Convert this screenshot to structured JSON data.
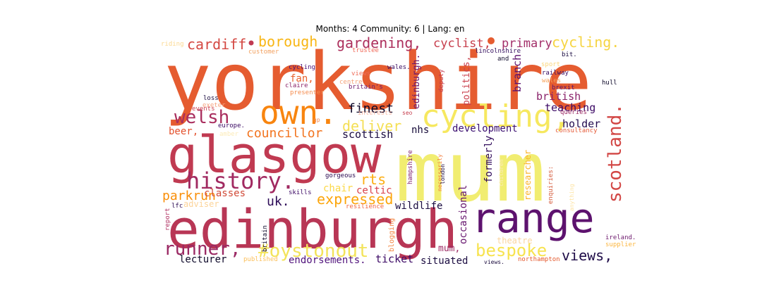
{
  "chart_data": {
    "type": "wordcloud",
    "title": "Months: 4 Community: 6 | Lang: en",
    "colormap": "inferno",
    "background": "#ffffff",
    "words": [
      {
        "text": "yorkshire",
        "color": "#e55c30",
        "weight": 1.0
      },
      {
        "text": "mum",
        "color": "#f1ed71",
        "weight": 0.97
      },
      {
        "text": "glasgow",
        "color": "#c03a51",
        "weight": 0.78
      },
      {
        "text": "edinburgh",
        "color": "#b83655",
        "weight": 0.76
      },
      {
        "text": "range",
        "color": "#5d126e",
        "weight": 0.62
      },
      {
        "text": "own.",
        "color": "#f8850f",
        "weight": 0.48
      },
      {
        "text": "cycling,",
        "color": "#f6e85f",
        "weight": 0.46
      },
      {
        "text": "history.",
        "color": "#a12a61",
        "weight": 0.33
      },
      {
        "text": "welsh",
        "color": "#a92e5e",
        "weight": 0.28
      },
      {
        "text": "runner,",
        "color": "#9b2964",
        "weight": 0.27
      },
      {
        "text": "#oystonout",
        "color": "#f3e35a",
        "weight": 0.27
      },
      {
        "text": "scotland.",
        "color": "#d24644",
        "weight": 0.26
      },
      {
        "text": "bespoke",
        "color": "#f7e34f",
        "weight": 0.25
      },
      {
        "text": "cardiff",
        "color": "#d44842",
        "weight": 0.22
      },
      {
        "text": "borough",
        "color": "#f8b615",
        "weight": 0.22
      },
      {
        "text": "gardening,",
        "color": "#ad305d",
        "weight": 0.22
      },
      {
        "text": "cycling.",
        "color": "#f6d543",
        "weight": 0.22
      },
      {
        "text": "parkrun",
        "color": "#f98e08",
        "weight": 0.2
      },
      {
        "text": "expressed",
        "color": "#fca50a",
        "weight": 0.2
      },
      {
        "text": "views,",
        "color": "#1f0c48",
        "weight": 0.2
      },
      {
        "text": "rts",
        "color": "#fcae12",
        "weight": 0.2
      },
      {
        "text": "deliver",
        "color": "#f4df53",
        "weight": 0.2
      },
      {
        "text": "finest",
        "color": "#0d0829",
        "weight": 0.19
      },
      {
        "text": "councillor",
        "color": "#f2741f",
        "weight": 0.19
      },
      {
        "text": "uk.",
        "color": "#2c0b57",
        "weight": 0.18
      },
      {
        "text": "cyclist,",
        "color": "#c73e4c",
        "weight": 0.17
      },
      {
        "text": "primary",
        "color": "#a3306a",
        "weight": 0.17
      },
      {
        "text": "teaching",
        "color": "#3c0965",
        "weight": 0.16
      },
      {
        "text": "holder",
        "color": "#240c4f",
        "weight": 0.15
      },
      {
        "text": "british",
        "color": "#8a226a",
        "weight": 0.15
      },
      {
        "text": "branch",
        "color": "#5d126e",
        "weight": 0.15
      },
      {
        "text": "scottish",
        "color": "#1b0c41",
        "weight": 0.15
      },
      {
        "text": "development",
        "color": "#3b0f70",
        "weight": 0.15
      },
      {
        "text": "nhs",
        "color": "#160b39",
        "weight": 0.13
      },
      {
        "text": "wildlife",
        "color": "#1b0c41",
        "weight": 0.15
      },
      {
        "text": "celtic",
        "color": "#d8414a",
        "weight": 0.15
      },
      {
        "text": "chair",
        "color": "#fbd846",
        "weight": 0.13
      },
      {
        "text": "classes",
        "color": "#d14a37",
        "weight": 0.14
      },
      {
        "text": "beer,",
        "color": "#e3512d",
        "weight": 0.14
      },
      {
        "text": "fan,",
        "color": "#e7622d",
        "weight": 0.14
      },
      {
        "text": "lecturer",
        "color": "#0d0829",
        "weight": 0.15
      },
      {
        "text": "endorsements.",
        "color": "#4f117b",
        "weight": 0.13
      },
      {
        "text": "ticket",
        "color": "#3c0965",
        "weight": 0.15
      },
      {
        "text": "situated",
        "color": "#1b0c41",
        "weight": 0.14
      },
      {
        "text": "mum,",
        "color": "#9c2a63",
        "weight": 0.13
      },
      {
        "text": "occasional",
        "color": "#66156e",
        "weight": 0.15
      },
      {
        "text": "formerly",
        "color": "#300a5b",
        "weight": 0.14
      },
      {
        "text": "politics,",
        "color": "#c93f4c",
        "weight": 0.13
      },
      {
        "text": "researcher",
        "color": "#fbb32a",
        "weight": 0.11
      },
      {
        "text": "edinburgh.",
        "color": "#6a176e",
        "weight": 0.13
      },
      {
        "text": "theatre",
        "color": "#fbd5a0",
        "weight": 0.11
      },
      {
        "text": "adviser",
        "color": "#fcd49a",
        "weight": 0.11
      },
      {
        "text": "britain",
        "color": "#0d0829",
        "weight": 0.08
      },
      {
        "text": "blogging",
        "color": "#f38845",
        "weight": 0.09
      },
      {
        "text": "northampton",
        "color": "#e4582c",
        "weight": 0.08
      },
      {
        "text": "views.",
        "color": "#1a0b3e",
        "weight": 0.07
      },
      {
        "text": "ireland.",
        "color": "#6e1a6e",
        "weight": 0.08
      },
      {
        "text": "supplier",
        "color": "#fbb53d",
        "weight": 0.08
      },
      {
        "text": "enquiries:",
        "color": "#d55c3c",
        "weight": 0.08
      },
      {
        "text": "anything",
        "color": "#fde4a5",
        "weight": 0.07
      },
      {
        "text": "children",
        "color": "#fcecb9",
        "weight": 0.07
      },
      {
        "text": "hampshire",
        "color": "#7d1e6c",
        "weight": 0.08
      },
      {
        "text": "necessarily",
        "color": "#f37c3c",
        "weight": 0.07
      },
      {
        "text": "london",
        "color": "#1b0c41",
        "weight": 0.07
      },
      {
        "text": "resilience",
        "color": "#f06742",
        "weight": 0.08
      },
      {
        "text": "skills",
        "color": "#3c0965",
        "weight": 0.08
      },
      {
        "text": "gorgeous",
        "color": "#2a0a51",
        "weight": 0.08
      },
      {
        "text": "lfc",
        "color": "#2a0a51",
        "weight": 0.08
      },
      {
        "text": "report",
        "color": "#b03062",
        "weight": 0.08
      },
      {
        "text": "published",
        "color": "#fbbf5a",
        "weight": 0.08
      },
      {
        "text": "riding",
        "color": "#fbd890",
        "weight": 0.08
      },
      {
        "text": "customer",
        "color": "#f2a160",
        "weight": 0.08
      },
      {
        "text": "trustee",
        "color": "#f06a5a",
        "weight": 0.08
      },
      {
        "text": "cycling",
        "color": "#491077",
        "weight": 0.08
      },
      {
        "text": "wales.",
        "color": "#380a62",
        "weight": 0.08
      },
      {
        "text": "views",
        "color": "#ef6c58",
        "weight": 0.08
      },
      {
        "text": "centre",
        "color": "#f5a37a",
        "weight": 0.08
      },
      {
        "text": "britain's",
        "color": "#6e1a6e",
        "weight": 0.08
      },
      {
        "text": "claire",
        "color": "#8c246a",
        "weight": 0.08
      },
      {
        "text": "presenter",
        "color": "#f48b4d",
        "weight": 0.08
      },
      {
        "text": "loss",
        "color": "#1b0c41",
        "weight": 0.08
      },
      {
        "text": "exeter",
        "color": "#f6a37f",
        "weight": 0.08
      },
      {
        "text": "events",
        "color": "#cc4250",
        "weight": 0.08
      },
      {
        "text": "europe.",
        "color": "#3a0963",
        "weight": 0.08
      },
      {
        "text": "amber",
        "color": "#fcebb8",
        "weight": 0.08
      },
      {
        "text": "gp",
        "color": "#f08952",
        "weight": 0.06
      },
      {
        "text": "interests",
        "color": "#f9b8a5",
        "weight": 0.08
      },
      {
        "text": "seo",
        "color": "#c63d4d",
        "weight": 0.06
      },
      {
        "text": "deputy",
        "color": "#c23a50",
        "weight": 0.08
      },
      {
        "text": "lincolnshire",
        "color": "#300a5b",
        "weight": 0.08
      },
      {
        "text": "and",
        "color": "#0d0829",
        "weight": 0.06
      },
      {
        "text": "bit.",
        "color": "#1b0c41",
        "weight": 0.08
      },
      {
        "text": "sport",
        "color": "#fcd67a",
        "weight": 0.07
      },
      {
        "text": "railway",
        "color": "#380a62",
        "weight": 0.08
      },
      {
        "text": "wales",
        "color": "#f6a25a",
        "weight": 0.08
      },
      {
        "text": "brexit",
        "color": "#5a1370",
        "weight": 0.08
      },
      {
        "text": "hull",
        "color": "#0d0829",
        "weight": 0.08
      },
      {
        "text": "queries",
        "color": "#9b2964",
        "weight": 0.07
      },
      {
        "text": "consultancy",
        "color": "#e55a37",
        "weight": 0.08
      }
    ]
  }
}
